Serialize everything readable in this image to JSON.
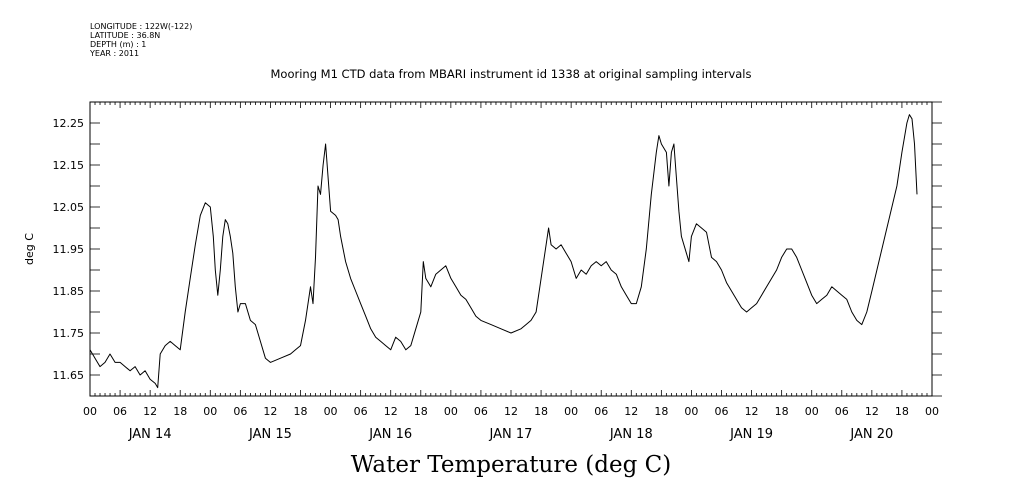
{
  "header": {
    "lines": [
      "LONGITUDE : 122W(-122)",
      "LATITUDE : 36.8N",
      "DEPTH (m) : 1",
      "YEAR : 2011"
    ]
  },
  "chart_data": {
    "type": "line",
    "title": "Mooring M1 CTD data from MBARI instrument id 1338 at original sampling intervals",
    "xlabel": "Water Temperature (deg C)",
    "ylabel": "deg C",
    "xlim": [
      0,
      168
    ],
    "ylim": [
      11.6,
      12.3
    ],
    "y_ticks": [
      "11.65",
      "11.75",
      "11.85",
      "11.95",
      "12.05",
      "12.15",
      "12.25"
    ],
    "hour_ticks": [
      "00",
      "06",
      "12",
      "18",
      "00",
      "06",
      "12",
      "18",
      "00",
      "06",
      "12",
      "18",
      "00",
      "06",
      "12",
      "18",
      "00",
      "06",
      "12",
      "18",
      "00",
      "06",
      "12",
      "18",
      "00",
      "06",
      "12",
      "18",
      "00"
    ],
    "day_labels": [
      "JAN 14",
      "JAN 15",
      "JAN 16",
      "JAN 17",
      "JAN 18",
      "JAN 19",
      "JAN 20"
    ],
    "x_units": "hours since JAN 14 00",
    "series": [
      {
        "points": [
          [
            0,
            11.71
          ],
          [
            1,
            11.69
          ],
          [
            2,
            11.67
          ],
          [
            3,
            11.68
          ],
          [
            4,
            11.7
          ],
          [
            5,
            11.68
          ],
          [
            6,
            11.68
          ],
          [
            7,
            11.67
          ],
          [
            8,
            11.66
          ],
          [
            9,
            11.67
          ],
          [
            10,
            11.65
          ],
          [
            11,
            11.66
          ],
          [
            12,
            11.64
          ],
          [
            13,
            11.63
          ],
          [
            13.5,
            11.62
          ],
          [
            14,
            11.7
          ],
          [
            15,
            11.72
          ],
          [
            16,
            11.73
          ],
          [
            17,
            11.72
          ],
          [
            18,
            11.71
          ],
          [
            19,
            11.8
          ],
          [
            20,
            11.88
          ],
          [
            21,
            11.96
          ],
          [
            22,
            12.03
          ],
          [
            23,
            12.06
          ],
          [
            24,
            12.05
          ],
          [
            24.6,
            11.98
          ],
          [
            25,
            11.9
          ],
          [
            25.5,
            11.84
          ],
          [
            26,
            11.9
          ],
          [
            26.5,
            11.98
          ],
          [
            27,
            12.02
          ],
          [
            27.5,
            12.01
          ],
          [
            28,
            11.98
          ],
          [
            28.5,
            11.94
          ],
          [
            29,
            11.86
          ],
          [
            29.5,
            11.8
          ],
          [
            30,
            11.82
          ],
          [
            31,
            11.82
          ],
          [
            32,
            11.78
          ],
          [
            33,
            11.77
          ],
          [
            34,
            11.73
          ],
          [
            35,
            11.69
          ],
          [
            36,
            11.68
          ],
          [
            38,
            11.69
          ],
          [
            40,
            11.7
          ],
          [
            41,
            11.71
          ],
          [
            42,
            11.72
          ],
          [
            43,
            11.78
          ],
          [
            44,
            11.86
          ],
          [
            44.5,
            11.82
          ],
          [
            45,
            11.93
          ],
          [
            45.5,
            12.1
          ],
          [
            46,
            12.08
          ],
          [
            46.5,
            12.15
          ],
          [
            47,
            12.2
          ],
          [
            47.5,
            12.12
          ],
          [
            48,
            12.04
          ],
          [
            49,
            12.03
          ],
          [
            49.5,
            12.02
          ],
          [
            50,
            11.98
          ],
          [
            51,
            11.92
          ],
          [
            52,
            11.88
          ],
          [
            53,
            11.85
          ],
          [
            54,
            11.82
          ],
          [
            55,
            11.79
          ],
          [
            56,
            11.76
          ],
          [
            57,
            11.74
          ],
          [
            58,
            11.73
          ],
          [
            59,
            11.72
          ],
          [
            60,
            11.71
          ],
          [
            61,
            11.74
          ],
          [
            62,
            11.73
          ],
          [
            63,
            11.71
          ],
          [
            64,
            11.72
          ],
          [
            65,
            11.76
          ],
          [
            66,
            11.8
          ],
          [
            66.5,
            11.92
          ],
          [
            67,
            11.88
          ],
          [
            68,
            11.86
          ],
          [
            69,
            11.89
          ],
          [
            70,
            11.9
          ],
          [
            71,
            11.91
          ],
          [
            72,
            11.88
          ],
          [
            73,
            11.86
          ],
          [
            74,
            11.84
          ],
          [
            75,
            11.83
          ],
          [
            76,
            11.81
          ],
          [
            77,
            11.79
          ],
          [
            78,
            11.78
          ],
          [
            80,
            11.77
          ],
          [
            82,
            11.76
          ],
          [
            84,
            11.75
          ],
          [
            86,
            11.76
          ],
          [
            87,
            11.77
          ],
          [
            88,
            11.78
          ],
          [
            89,
            11.8
          ],
          [
            90,
            11.88
          ],
          [
            91,
            11.96
          ],
          [
            91.5,
            12.0
          ],
          [
            92,
            11.96
          ],
          [
            93,
            11.95
          ],
          [
            94,
            11.96
          ],
          [
            95,
            11.94
          ],
          [
            96,
            11.92
          ],
          [
            97,
            11.88
          ],
          [
            98,
            11.9
          ],
          [
            99,
            11.89
          ],
          [
            100,
            11.91
          ],
          [
            101,
            11.92
          ],
          [
            102,
            11.91
          ],
          [
            103,
            11.92
          ],
          [
            104,
            11.9
          ],
          [
            105,
            11.89
          ],
          [
            106,
            11.86
          ],
          [
            107,
            11.84
          ],
          [
            108,
            11.82
          ],
          [
            109,
            11.82
          ],
          [
            110,
            11.86
          ],
          [
            111,
            11.95
          ],
          [
            112,
            12.08
          ],
          [
            113,
            12.18
          ],
          [
            113.5,
            12.22
          ],
          [
            114,
            12.2
          ],
          [
            115,
            12.18
          ],
          [
            115.5,
            12.1
          ],
          [
            116,
            12.18
          ],
          [
            116.5,
            12.2
          ],
          [
            117,
            12.12
          ],
          [
            117.5,
            12.04
          ],
          [
            118,
            11.98
          ],
          [
            119,
            11.94
          ],
          [
            119.5,
            11.92
          ],
          [
            120,
            11.98
          ],
          [
            121,
            12.01
          ],
          [
            122,
            12.0
          ],
          [
            123,
            11.99
          ],
          [
            123.5,
            11.96
          ],
          [
            124,
            11.93
          ],
          [
            125,
            11.92
          ],
          [
            126,
            11.9
          ],
          [
            127,
            11.87
          ],
          [
            128,
            11.85
          ],
          [
            129,
            11.83
          ],
          [
            130,
            11.81
          ],
          [
            131,
            11.8
          ],
          [
            132,
            11.81
          ],
          [
            133,
            11.82
          ],
          [
            134,
            11.84
          ],
          [
            135,
            11.86
          ],
          [
            136,
            11.88
          ],
          [
            137,
            11.9
          ],
          [
            138,
            11.93
          ],
          [
            139,
            11.95
          ],
          [
            140,
            11.95
          ],
          [
            141,
            11.93
          ],
          [
            142,
            11.9
          ],
          [
            143,
            11.87
          ],
          [
            144,
            11.84
          ],
          [
            145,
            11.82
          ],
          [
            146,
            11.83
          ],
          [
            147,
            11.84
          ],
          [
            148,
            11.86
          ],
          [
            149,
            11.85
          ],
          [
            150,
            11.84
          ],
          [
            151,
            11.83
          ],
          [
            152,
            11.8
          ],
          [
            153,
            11.78
          ],
          [
            154,
            11.77
          ],
          [
            155,
            11.8
          ],
          [
            156,
            11.85
          ],
          [
            157,
            11.9
          ],
          [
            158,
            11.95
          ],
          [
            159,
            12.0
          ],
          [
            160,
            12.05
          ],
          [
            161,
            12.1
          ],
          [
            162,
            12.18
          ],
          [
            163,
            12.25
          ],
          [
            163.5,
            12.27
          ],
          [
            164,
            12.26
          ],
          [
            164.5,
            12.2
          ],
          [
            165,
            12.08
          ]
        ]
      }
    ],
    "grid": false,
    "legend": "none",
    "line_color": "#000000"
  }
}
